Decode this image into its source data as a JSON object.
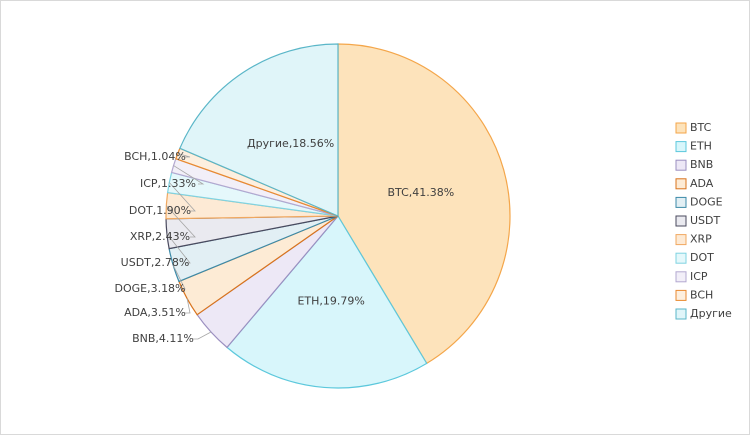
{
  "chart_data": {
    "type": "pie",
    "categories": [
      "BTC",
      "ETH",
      "BNB",
      "ADA",
      "DOGE",
      "USDT",
      "XRP",
      "DOT",
      "ICP",
      "BCH",
      "Другие"
    ],
    "values": [
      41.38,
      19.79,
      4.11,
      3.51,
      3.18,
      2.78,
      2.43,
      1.9,
      1.33,
      1.04,
      18.56
    ],
    "value_labels": [
      "BTC,41.38%",
      "ETH,19.79%",
      "BNB,4.11%",
      "ADA,3.51%",
      "DOGE,3.18%",
      "USDT,2.78%",
      "XRP,2.43%",
      "DOT,1.90%",
      "ICP,1.33%",
      "BCH,1.04%",
      "Другие,18.56%"
    ],
    "colors": [
      "#f4a64a",
      "#5cc8dc",
      "#9b8fc0",
      "#d9731c",
      "#3c8aa8",
      "#4a4a5e",
      "#f0a860",
      "#7fd3e2",
      "#b3a8d0",
      "#e98a30",
      "#5ab6c8"
    ],
    "fills": [
      "#fde3bb",
      "#d8f6fb",
      "#ede8f6",
      "#fdebd5",
      "#e2eff4",
      "#eaeaf0",
      "#fdead5",
      "#e5f8fb",
      "#f2eff8",
      "#fdefdf",
      "#e0f5f9"
    ],
    "legend": "right"
  }
}
